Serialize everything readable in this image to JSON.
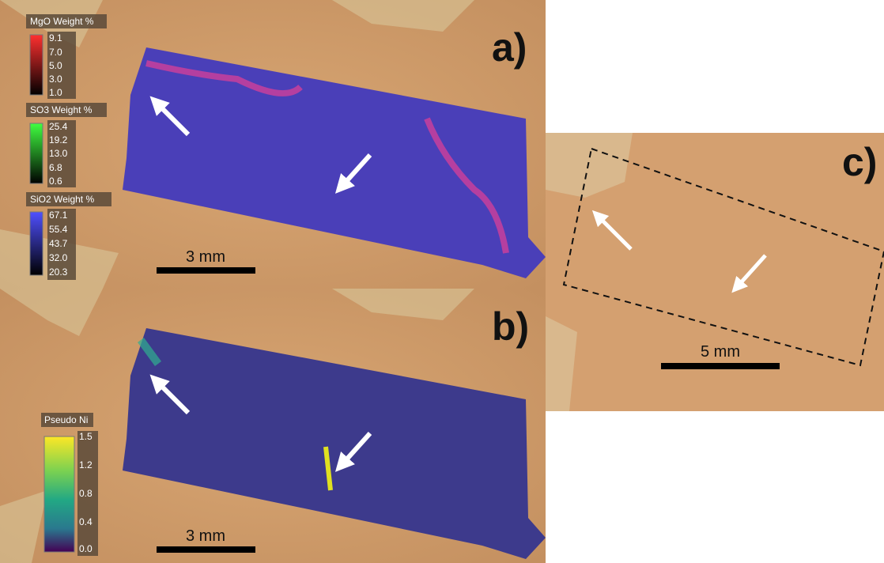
{
  "panels": {
    "a": {
      "label": "a)",
      "scale_bar": "3 mm",
      "colorbars": [
        {
          "title": "MgO Weight %",
          "ticks": [
            "9.1",
            "7.0",
            "5.0",
            "3.0",
            "1.0"
          ]
        },
        {
          "title": "SO3 Weight %",
          "ticks": [
            "25.4",
            "19.2",
            "13.0",
            "6.8",
            "0.6"
          ]
        },
        {
          "title": "SiO2 Weight %",
          "ticks": [
            "67.1",
            "55.4",
            "43.7",
            "32.0",
            "20.3"
          ]
        }
      ]
    },
    "b": {
      "label": "b)",
      "scale_bar": "3 mm",
      "colorbars": [
        {
          "title": "Pseudo Ni",
          "ticks": [
            "1.5",
            "1.2",
            "0.8",
            "0.4",
            "0.0"
          ]
        }
      ]
    },
    "c": {
      "label": "c)",
      "scale_bar": "5 mm"
    }
  }
}
